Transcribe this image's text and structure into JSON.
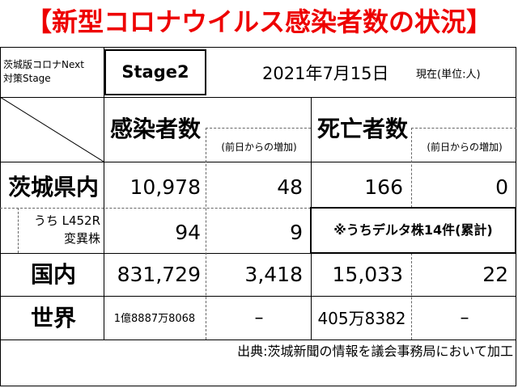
{
  "title": "【新型コロナウイルス感染者数の状況】",
  "stage_label_line1": "茨城版コロナNext",
  "stage_label_line2": "対策Stage",
  "stage_value": "Stage2",
  "date": "2021年7月15日",
  "unit": "現在(単位:人)",
  "headers": {
    "infected": "感染者数",
    "infected_change": "(前日からの増加)",
    "deaths": "死亡者数",
    "deaths_change": "(前日からの増加)"
  },
  "rows": {
    "ibaraki": {
      "label": "茨城県内",
      "infected": "10,978",
      "infected_change": "48",
      "deaths": "166",
      "deaths_change": "0"
    },
    "variant": {
      "label_line1": "うち L452R",
      "label_line2": "変異株",
      "infected": "94",
      "infected_change": "9",
      "note": "※うちデルタ株14件(累計)"
    },
    "national": {
      "label": "国内",
      "infected": "831,729",
      "infected_change": "3,418",
      "deaths": "15,033",
      "deaths_change": "22"
    },
    "world": {
      "label": "世界",
      "infected": "1億8887万8068",
      "infected_change": "–",
      "deaths": "405万8382",
      "deaths_change": "–"
    }
  },
  "source": "出典:茨城新聞の情報を議会事務局において加工"
}
